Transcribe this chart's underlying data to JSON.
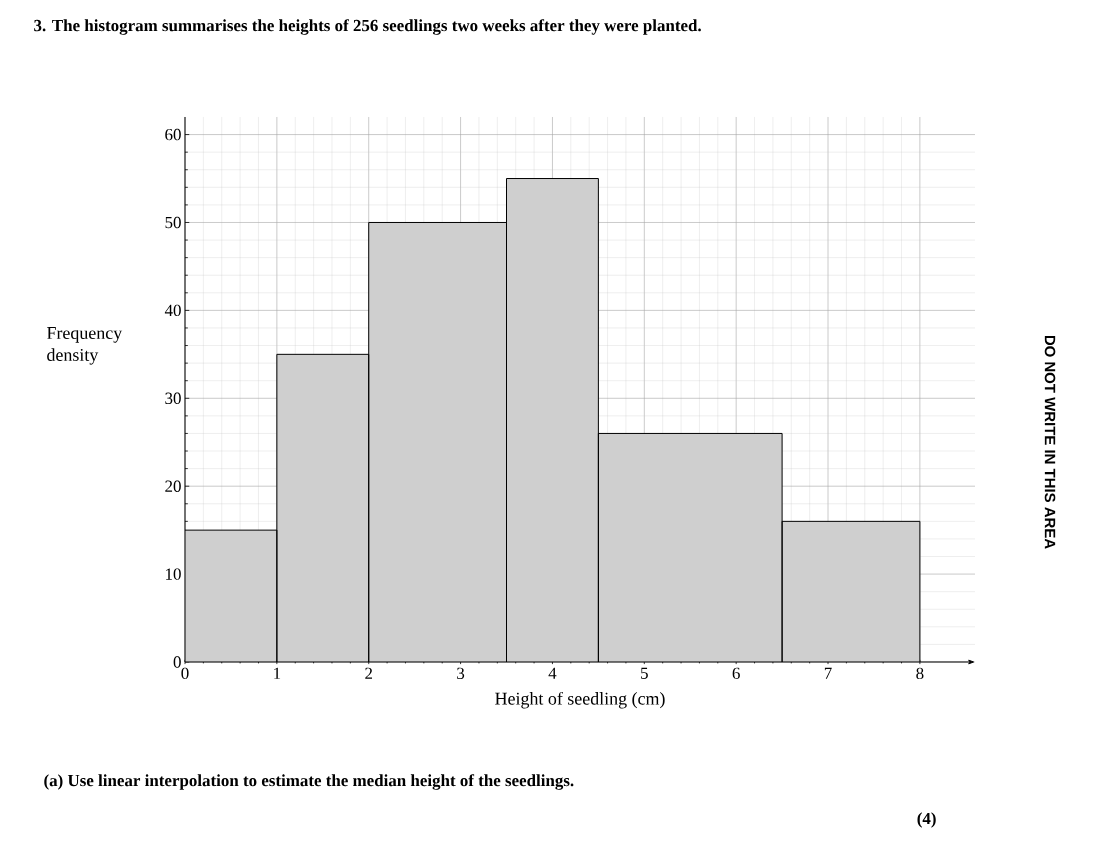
{
  "chart_data": {
    "type": "histogram",
    "title": "3. The histogram summarises the heights of 256 seedlings two weeks after they were planted.",
    "xlabel": "Height of seedling (cm)",
    "ylabel": "Frequency density",
    "bins": [
      0,
      1,
      2,
      3.5,
      4.5,
      6.5,
      8
    ],
    "values": [
      15,
      35,
      50,
      55,
      26,
      16
    ],
    "color": "#cfcfcf",
    "xlim": [
      0,
      8.6
    ],
    "ylim": [
      0,
      62
    ],
    "xticks": [
      0,
      1,
      2,
      3,
      4,
      5,
      6,
      7,
      8
    ],
    "yticks": [
      0,
      10,
      20,
      30,
      40,
      50,
      60
    ],
    "grid": true,
    "annotations": [
      "(a) Use linear interpolation to estimate the median height of the seedlings.",
      "(4)",
      "DO NOT WRITE IN THIS AREA"
    ]
  }
}
